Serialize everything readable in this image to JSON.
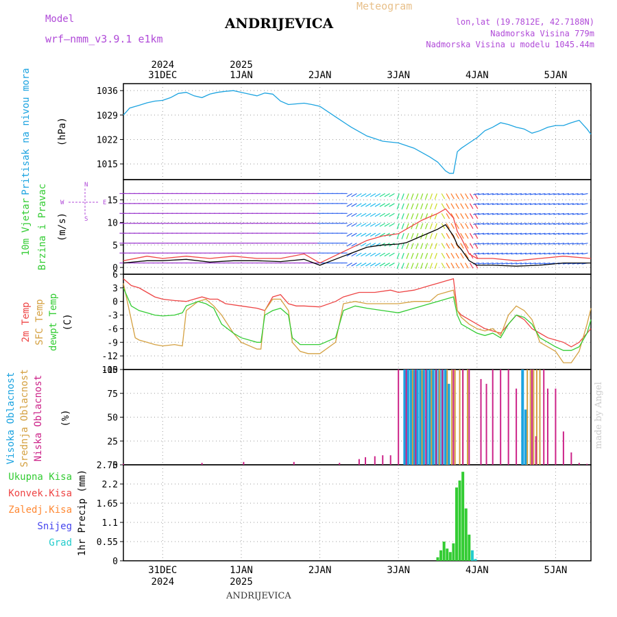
{
  "header": {
    "title": "ANDRIJEVICA",
    "meteogram_label": "Meteogram",
    "model_label": "Model",
    "model_name": "wrf—nmm_v3.9.1  e1km",
    "info_lines": [
      "lon,lat (19.7812E, 42.7188N)",
      "Nadmorska Visina 779m",
      "Nadmorska Visina u modelu 1045.44m"
    ],
    "bottom_name": "ANDRIJEVICA",
    "credit": "made by Angel"
  },
  "time_axis": {
    "top_labels": [
      {
        "day": 0,
        "line1": "2024",
        "line2": "31DEC"
      },
      {
        "day": 1,
        "line1": "2025",
        "line2": "1JAN"
      },
      {
        "day": 2,
        "line1": "",
        "line2": "2JAN"
      },
      {
        "day": 3,
        "line1": "",
        "line2": "3JAN"
      },
      {
        "day": 4,
        "line1": "",
        "line2": "4JAN"
      },
      {
        "day": 5,
        "line1": "",
        "line2": "5JAN"
      }
    ],
    "bottom_labels": [
      {
        "day": 0,
        "line1": "31DEC",
        "line2": "2024"
      },
      {
        "day": 1,
        "line1": "1JAN",
        "line2": "2025"
      },
      {
        "day": 2,
        "line1": "2JAN",
        "line2": ""
      },
      {
        "day": 3,
        "line1": "3JAN",
        "line2": ""
      },
      {
        "day": 4,
        "line1": "4JAN",
        "line2": ""
      },
      {
        "day": 5,
        "line1": "5JAN",
        "line2": ""
      }
    ],
    "range_days": [
      -0.5,
      5.45
    ]
  },
  "chart_data": [
    {
      "type": "line",
      "panel": "pressure",
      "ylabel_main": "Pritisak na nivou mora",
      "ylabel_unit": "(hPa)",
      "yticks": [
        1015,
        1022,
        1029,
        1036
      ],
      "ylim": [
        1010.5,
        1038
      ],
      "color": "#1ba3e0",
      "x": [
        -0.5,
        -0.42,
        -0.3,
        -0.2,
        -0.1,
        0.0,
        0.1,
        0.2,
        0.3,
        0.4,
        0.5,
        0.6,
        0.7,
        0.8,
        0.9,
        1.0,
        1.1,
        1.2,
        1.3,
        1.4,
        1.5,
        1.6,
        1.7,
        1.8,
        1.9,
        2.0,
        2.2,
        2.4,
        2.6,
        2.8,
        3.0,
        3.2,
        3.4,
        3.5,
        3.6,
        3.65,
        3.7,
        3.75,
        3.8,
        3.9,
        4.0,
        4.1,
        4.2,
        4.3,
        4.4,
        4.5,
        4.6,
        4.7,
        4.8,
        4.9,
        5.0,
        5.1,
        5.2,
        5.3,
        5.4,
        5.45
      ],
      "y": [
        1029,
        1031,
        1031.8,
        1032.5,
        1033,
        1033.2,
        1034,
        1035.2,
        1035.5,
        1034.5,
        1034,
        1035,
        1035.5,
        1035.8,
        1036,
        1035.5,
        1035,
        1034.5,
        1035.3,
        1035,
        1033,
        1032,
        1032.2,
        1032.4,
        1032,
        1031.5,
        1028.5,
        1025.5,
        1023,
        1021.5,
        1021,
        1019.5,
        1017,
        1015.5,
        1013,
        1012.3,
        1012.3,
        1018.5,
        1019.5,
        1021,
        1022.5,
        1024.5,
        1025.5,
        1026.8,
        1026.3,
        1025.5,
        1025,
        1023.8,
        1024.5,
        1025.5,
        1026,
        1026,
        1026.8,
        1027.5,
        1025,
        1023.5
      ]
    },
    {
      "type": "line",
      "panel": "wind",
      "ylabel_main": "10m Vjetar",
      "ylabel_sub": "Brzina i Pravac",
      "ylabel_unit": "(m/s)",
      "yticks": [
        0,
        5,
        10,
        15
      ],
      "ylim": [
        -1.5,
        19.5
      ],
      "compass": {
        "n": "N",
        "s": "S",
        "e": "E",
        "w": "W"
      },
      "series": [
        {
          "name": "speed",
          "color": "#000000",
          "x": [
            -0.5,
            -0.2,
            0.0,
            0.3,
            0.6,
            0.9,
            1.2,
            1.5,
            1.8,
            2.0,
            2.3,
            2.6,
            2.8,
            3.0,
            3.1,
            3.3,
            3.5,
            3.6,
            3.7,
            3.75,
            3.8,
            3.9,
            4.0,
            4.2,
            4.5,
            4.8,
            5.1,
            5.45
          ],
          "y": [
            1.0,
            1.5,
            1.5,
            1.8,
            1.2,
            1.5,
            1.5,
            1.3,
            1.8,
            0.5,
            2.5,
            4.5,
            5.0,
            5.2,
            5.5,
            7.0,
            8.5,
            9.5,
            7.0,
            5.0,
            4.0,
            1.5,
            0.5,
            0.5,
            0.3,
            0.5,
            1.0,
            1.0
          ]
        },
        {
          "name": "gust",
          "color": "#ee4444",
          "x": [
            -0.5,
            -0.2,
            0.0,
            0.3,
            0.6,
            0.9,
            1.2,
            1.5,
            1.8,
            2.0,
            2.3,
            2.6,
            2.8,
            3.0,
            3.1,
            3.3,
            3.5,
            3.6,
            3.7,
            3.75,
            3.8,
            3.9,
            4.0,
            4.2,
            4.5,
            4.8,
            5.1,
            5.45
          ],
          "y": [
            1.5,
            2.5,
            2.0,
            2.5,
            2.0,
            2.5,
            2.0,
            2.0,
            3.0,
            1.0,
            3.5,
            6.0,
            7.0,
            7.5,
            8.5,
            10.5,
            12.0,
            13.0,
            11.0,
            8.0,
            6.5,
            3.0,
            2.0,
            2.0,
            1.5,
            2.0,
            2.5,
            2.0
          ]
        }
      ]
    },
    {
      "type": "line",
      "panel": "temperature",
      "ylabel_main": "2m Temp",
      "ylabel_sub": "SFC Temp",
      "ylabel_sub2": "dewpt Temp",
      "ylabel_unit": "(C)",
      "yticks": [
        -15,
        -12,
        -9,
        -6,
        -3,
        0,
        3,
        6
      ],
      "ylim": [
        -15,
        6
      ],
      "series": [
        {
          "name": "2m Temp",
          "color": "#ee4444",
          "x": [
            -0.5,
            -0.4,
            -0.3,
            -0.2,
            -0.1,
            0.0,
            0.15,
            0.3,
            0.4,
            0.5,
            0.6,
            0.7,
            0.8,
            1.0,
            1.2,
            1.3,
            1.4,
            1.5,
            1.6,
            1.7,
            1.8,
            2.0,
            2.2,
            2.3,
            2.4,
            2.5,
            2.7,
            2.9,
            3.0,
            3.2,
            3.4,
            3.5,
            3.6,
            3.7,
            3.75,
            3.8,
            3.9,
            4.0,
            4.1,
            4.2,
            4.3,
            4.4,
            4.5,
            4.6,
            4.7,
            4.8,
            4.9,
            5.0,
            5.1,
            5.2,
            5.3,
            5.4,
            5.45
          ],
          "y": [
            5,
            3.5,
            3,
            2,
            1,
            0.5,
            0.2,
            0,
            0.5,
            1,
            0.5,
            0.5,
            -0.5,
            -1,
            -1.5,
            -2,
            1,
            1.5,
            -0.5,
            -1,
            -1,
            -1.2,
            0,
            1,
            1.5,
            2,
            2,
            2.5,
            2,
            2.5,
            3.5,
            4,
            4.5,
            5,
            -2,
            -3,
            -4,
            -5,
            -6,
            -6.5,
            -7,
            -5,
            -3,
            -4,
            -6,
            -7,
            -8,
            -8.5,
            -9,
            -10,
            -9,
            -7,
            -6
          ]
        },
        {
          "name": "SFC Temp",
          "color": "#d4a040",
          "x": [
            -0.5,
            -0.45,
            -0.35,
            -0.3,
            -0.2,
            -0.1,
            0.0,
            0.15,
            0.25,
            0.3,
            0.45,
            0.55,
            0.65,
            0.75,
            0.9,
            1.0,
            1.2,
            1.25,
            1.3,
            1.4,
            1.5,
            1.6,
            1.65,
            1.75,
            1.85,
            2.0,
            2.2,
            2.3,
            2.45,
            2.6,
            2.8,
            3.0,
            3.2,
            3.4,
            3.5,
            3.6,
            3.7,
            3.75,
            3.8,
            3.9,
            4.0,
            4.1,
            4.2,
            4.3,
            4.4,
            4.5,
            4.6,
            4.7,
            4.8,
            4.9,
            5.0,
            5.1,
            5.2,
            5.3,
            5.4,
            5.45
          ],
          "y": [
            4,
            0,
            -8,
            -8.5,
            -9,
            -9.5,
            -9.8,
            -9.5,
            -9.8,
            -2,
            0,
            0.5,
            -1,
            -3,
            -7,
            -9,
            -10.5,
            -10.5,
            -2,
            0.5,
            0.5,
            -2,
            -9,
            -11,
            -11.5,
            -11.5,
            -9,
            -0.5,
            0,
            -0.5,
            -0.5,
            -0.5,
            0,
            0,
            1.5,
            2,
            2.5,
            -2,
            -3.5,
            -5,
            -6,
            -6.5,
            -6,
            -7.5,
            -3,
            -1,
            -2,
            -4,
            -9,
            -10,
            -11,
            -13.5,
            -13.5,
            -11,
            -5,
            -1.5
          ]
        },
        {
          "name": "dewpt Temp",
          "color": "#33cc33",
          "x": [
            -0.5,
            -0.4,
            -0.3,
            -0.2,
            -0.1,
            0.0,
            0.15,
            0.25,
            0.3,
            0.45,
            0.55,
            0.65,
            0.75,
            0.9,
            1.0,
            1.2,
            1.25,
            1.3,
            1.4,
            1.5,
            1.6,
            1.65,
            1.75,
            1.85,
            2.0,
            2.2,
            2.3,
            2.45,
            2.6,
            2.8,
            3.0,
            3.2,
            3.4,
            3.5,
            3.6,
            3.7,
            3.75,
            3.8,
            3.9,
            4.0,
            4.1,
            4.2,
            4.3,
            4.4,
            4.5,
            4.6,
            4.7,
            4.8,
            4.9,
            5.0,
            5.1,
            5.2,
            5.3,
            5.4,
            5.45
          ],
          "y": [
            3,
            -1,
            -2,
            -2.5,
            -3,
            -3.2,
            -3,
            -2.5,
            -1,
            0,
            -0.5,
            -1.5,
            -5,
            -7,
            -8,
            -9,
            -9,
            -3,
            -2,
            -1.5,
            -3,
            -8,
            -9.5,
            -9.5,
            -9.5,
            -8,
            -2,
            -1,
            -1.5,
            -2,
            -2.5,
            -1.5,
            -0.5,
            0,
            0.5,
            1,
            -3,
            -5,
            -6,
            -7,
            -7.5,
            -7,
            -8,
            -5,
            -3,
            -3.5,
            -5,
            -8,
            -9,
            -10,
            -10.8,
            -10.8,
            -10,
            -7,
            -4
          ]
        }
      ]
    },
    {
      "type": "bar",
      "panel": "cloud",
      "ylabel_main": "Visoka Oblacnost",
      "ylabel_sub": "Srednja Oblacnost",
      "ylabel_sub2": "Niska Oblacnost",
      "ylabel_unit": "(%)",
      "yticks": [
        0,
        25,
        50,
        75,
        100
      ],
      "ylim": [
        0,
        100
      ],
      "series": [
        {
          "name": "Visoka Oblacnost",
          "color": "#1ba3e0",
          "x": [
            3.08,
            3.12,
            3.16,
            3.2,
            3.24,
            3.28,
            3.32,
            3.36,
            3.4,
            3.44,
            3.48,
            3.52,
            3.56,
            3.6,
            3.64,
            4.58,
            4.62
          ],
          "y": [
            100,
            100,
            100,
            100,
            100,
            100,
            100,
            100,
            100,
            100,
            100,
            100,
            100,
            100,
            85,
            100,
            58
          ]
        },
        {
          "name": "Srednja Oblacnost",
          "color": "#d4a040",
          "x": [
            3.18,
            3.3,
            3.42,
            3.52,
            3.62,
            3.68,
            3.72,
            3.78,
            3.82,
            3.88,
            4.64,
            4.68,
            4.72,
            4.76,
            4.8
          ],
          "y": [
            100,
            100,
            100,
            100,
            100,
            100,
            100,
            100,
            100,
            100,
            100,
            100,
            100,
            100,
            100
          ]
        },
        {
          "name": "Niska Oblacnost",
          "color": "#cc2288",
          "x": [
            -0.5,
            0.5,
            1.03,
            1.67,
            2.25,
            2.5,
            2.58,
            2.7,
            2.8,
            2.9,
            3.0,
            3.1,
            3.22,
            3.35,
            3.48,
            3.56,
            3.7,
            3.82,
            3.9,
            4.05,
            4.12,
            4.2,
            4.3,
            4.4,
            4.5,
            4.7,
            4.75,
            4.85,
            4.9,
            5.0,
            5.1,
            5.2,
            5.3,
            5.4
          ],
          "y": [
            1,
            2,
            3,
            3,
            2,
            6,
            8,
            9,
            10,
            10,
            100,
            100,
            100,
            100,
            100,
            100,
            100,
            100,
            100,
            90,
            85,
            100,
            100,
            100,
            80,
            100,
            30,
            100,
            80,
            80,
            35,
            13,
            2,
            1
          ]
        }
      ]
    },
    {
      "type": "bar",
      "panel": "precip",
      "ylabel_main": "1hr Precip (mm)",
      "yticks": [
        0,
        0.55,
        1.1,
        1.65,
        2.2,
        2.75
      ],
      "ylim": [
        0,
        2.75
      ],
      "legend": [
        {
          "name": "Ukupna  Kisa",
          "color": "#33cc33"
        },
        {
          "name": "Konvek.Kisa",
          "color": "#ee4444"
        },
        {
          "name": "Zaledj.Kisa",
          "color": "#ff8833"
        },
        {
          "name": "Snijeg",
          "color": "#4444ee"
        },
        {
          "name": "Grad",
          "color": "#22cccc"
        }
      ],
      "series": [
        {
          "name": "Ukupna  Kisa",
          "color": "#33cc33",
          "x": [
            3.5,
            3.54,
            3.58,
            3.62,
            3.66,
            3.7,
            3.74,
            3.78,
            3.82,
            3.86,
            3.9,
            3.94
          ],
          "y": [
            0.1,
            0.3,
            0.55,
            0.35,
            0.25,
            0.5,
            2.1,
            2.3,
            2.55,
            1.5,
            0.75,
            0.05
          ]
        },
        {
          "name": "Grad",
          "color": "#22cccc",
          "x": [
            3.94,
            3.98
          ],
          "y": [
            0.3,
            0.05
          ]
        }
      ]
    }
  ]
}
